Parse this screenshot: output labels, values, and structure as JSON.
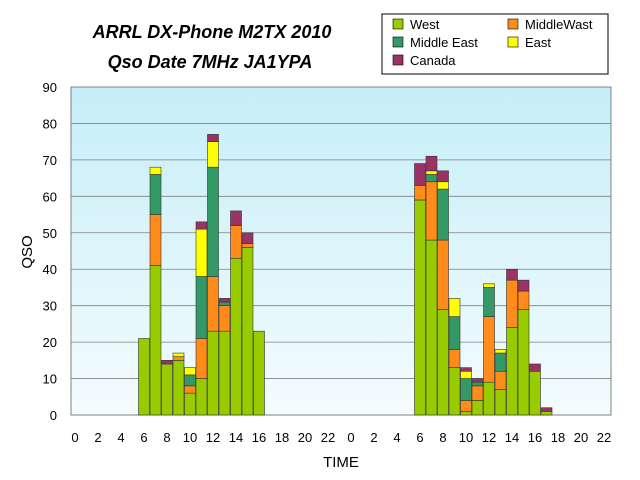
{
  "chart_data": {
    "type": "bar",
    "stacked": true,
    "title": [
      "ARRL DX-Phone M2TX 2010",
      "Qso Date 7MHz JA1YPA"
    ],
    "xlabel": "TIME",
    "ylabel": "QSO",
    "ylim": [
      0,
      90
    ],
    "yticks": [
      0,
      10,
      20,
      30,
      40,
      50,
      60,
      70,
      80,
      90
    ],
    "grid": true,
    "legend_position": "top-right",
    "plot_background": "gradient light cyan",
    "categories": [
      "0",
      "1",
      "2",
      "3",
      "4",
      "5",
      "6",
      "7",
      "8",
      "9",
      "10",
      "11",
      "12",
      "13",
      "14",
      "15",
      "16",
      "17",
      "18",
      "19",
      "20",
      "21",
      "22",
      "23",
      "0",
      "1",
      "2",
      "3",
      "4",
      "5",
      "6",
      "7",
      "8",
      "9",
      "10",
      "11",
      "12",
      "13",
      "14",
      "15",
      "16",
      "17",
      "18",
      "19",
      "20",
      "21",
      "22",
      "23"
    ],
    "tick_labels": [
      "0",
      "",
      "2",
      "",
      "4",
      "",
      "6",
      "",
      "8",
      "",
      "10",
      "",
      "12",
      "",
      "14",
      "",
      "16",
      "",
      "18",
      "",
      "20",
      "",
      "22",
      "",
      "0",
      "",
      "2",
      "",
      "4",
      "",
      "6",
      "",
      "8",
      "",
      "10",
      "",
      "12",
      "",
      "14",
      "",
      "16",
      "",
      "18",
      "",
      "20",
      "",
      "22",
      ""
    ],
    "series": [
      {
        "name": "West",
        "color": "#99cc00",
        "values": [
          0,
          0,
          0,
          0,
          0,
          0,
          21,
          41,
          14,
          15,
          6,
          10,
          23,
          23,
          43,
          46,
          23,
          0,
          0,
          0,
          0,
          0,
          0,
          0,
          0,
          0,
          0,
          0,
          0,
          0,
          59,
          48,
          29,
          13,
          1,
          4,
          9,
          7,
          24,
          29,
          12,
          1,
          0,
          0,
          0,
          0,
          0,
          0
        ]
      },
      {
        "name": "MiddleWast",
        "color": "#ff8c1a",
        "values": [
          0,
          0,
          0,
          0,
          0,
          0,
          0,
          14,
          0,
          1,
          2,
          11,
          15,
          7,
          9,
          1,
          0,
          0,
          0,
          0,
          0,
          0,
          0,
          0,
          0,
          0,
          0,
          0,
          0,
          0,
          4,
          16,
          19,
          5,
          3,
          4,
          18,
          5,
          13,
          5,
          0,
          0,
          0,
          0,
          0,
          0,
          0,
          0
        ]
      },
      {
        "name": "Middle East",
        "color": "#339966",
        "values": [
          0,
          0,
          0,
          0,
          0,
          0,
          0,
          11,
          0,
          0,
          3,
          17,
          30,
          1,
          0,
          0,
          0,
          0,
          0,
          0,
          0,
          0,
          0,
          0,
          0,
          0,
          0,
          0,
          0,
          0,
          0,
          2,
          14,
          9,
          6,
          1,
          8,
          5,
          0,
          0,
          0,
          0,
          0,
          0,
          0,
          0,
          0,
          0
        ]
      },
      {
        "name": "East",
        "color": "#ffff00",
        "values": [
          0,
          0,
          0,
          0,
          0,
          0,
          0,
          2,
          0,
          1,
          2,
          13,
          7,
          0,
          0,
          0,
          0,
          0,
          0,
          0,
          0,
          0,
          0,
          0,
          0,
          0,
          0,
          0,
          0,
          0,
          0,
          1,
          2,
          5,
          2,
          0,
          1,
          1,
          0,
          0,
          0,
          0,
          0,
          0,
          0,
          0,
          0,
          0
        ]
      },
      {
        "name": "Canada",
        "color": "#993366",
        "values": [
          0,
          0,
          0,
          0,
          0,
          0,
          0,
          0,
          1,
          0,
          0,
          2,
          2,
          1,
          4,
          3,
          0,
          0,
          0,
          0,
          0,
          0,
          0,
          0,
          0,
          0,
          0,
          0,
          0,
          0,
          6,
          4,
          3,
          0,
          1,
          1,
          0,
          0,
          3,
          3,
          2,
          1,
          0,
          0,
          0,
          0,
          0,
          0
        ]
      }
    ]
  }
}
